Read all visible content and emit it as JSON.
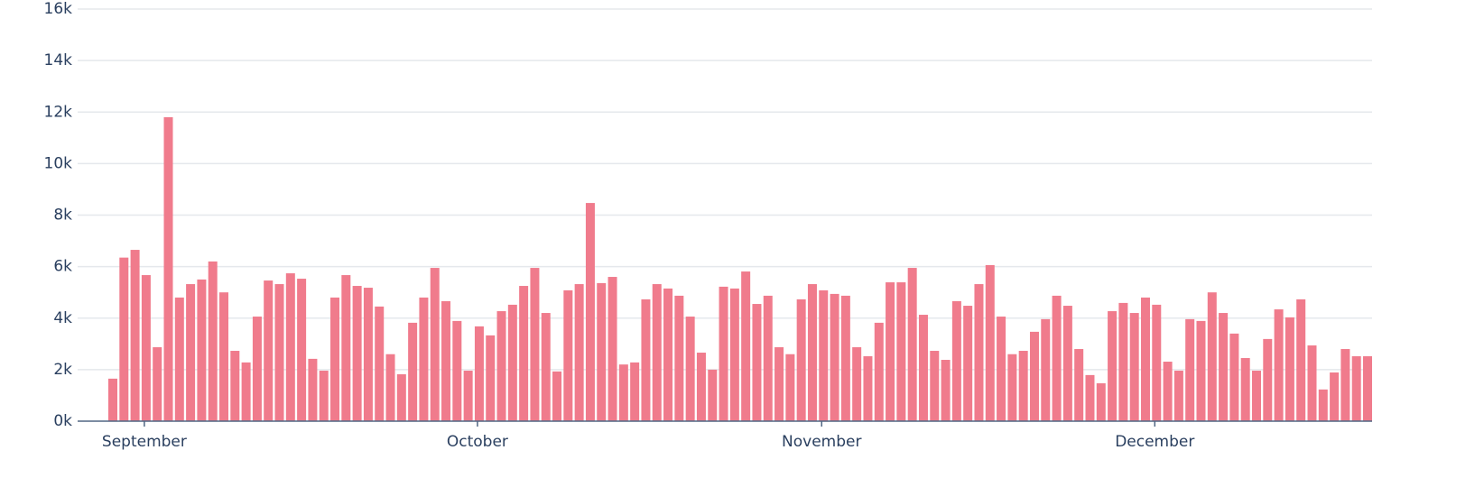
{
  "chart_data": {
    "type": "bar",
    "categories": [
      null,
      null,
      null,
      "September",
      null,
      null,
      null,
      null,
      null,
      null,
      null,
      null,
      null,
      null,
      null,
      null,
      null,
      null,
      null,
      null,
      null,
      null,
      null,
      null,
      null,
      null,
      null,
      null,
      null,
      null,
      null,
      null,
      null,
      "October",
      null,
      null,
      null,
      null,
      null,
      null,
      null,
      null,
      null,
      null,
      null,
      null,
      null,
      null,
      null,
      null,
      null,
      null,
      null,
      null,
      null,
      null,
      null,
      null,
      null,
      null,
      null,
      null,
      null,
      null,
      "November",
      null,
      null,
      null,
      null,
      null,
      null,
      null,
      null,
      null,
      null,
      null,
      null,
      null,
      null,
      null,
      null,
      null,
      null,
      null,
      null,
      null,
      null,
      null,
      null,
      null,
      null,
      null,
      null,
      null,
      "December",
      null,
      null,
      null,
      null,
      null,
      null,
      null,
      null,
      null,
      null,
      null,
      null,
      null,
      null,
      null,
      null,
      null,
      null,
      null
    ],
    "values": [
      1650,
      6350,
      6650,
      5670,
      2870,
      11800,
      4800,
      5320,
      5500,
      6200,
      5000,
      2730,
      2280,
      4060,
      5460,
      5320,
      5740,
      5530,
      2420,
      1960,
      4800,
      5670,
      5250,
      5180,
      4450,
      2600,
      1820,
      3820,
      4800,
      5950,
      4660,
      3890,
      1960,
      3680,
      3330,
      4270,
      4520,
      5250,
      5950,
      4200,
      1930,
      5080,
      5320,
      8470,
      5360,
      5600,
      2200,
      2280,
      4730,
      5320,
      5150,
      4870,
      4060,
      2660,
      2000,
      5220,
      5150,
      5810,
      4550,
      4870,
      2870,
      2600,
      4730,
      5320,
      5080,
      4940,
      4870,
      2870,
      2520,
      3820,
      5390,
      5390,
      5950,
      4130,
      2730,
      2380,
      4660,
      4480,
      5320,
      6060,
      4060,
      2600,
      2730,
      3470,
      3960,
      4870,
      4480,
      2800,
      1790,
      1470,
      4270,
      4590,
      4200,
      4800,
      4520,
      2310,
      1960,
      3960,
      3890,
      5000,
      4200,
      3400,
      2450,
      1960,
      3190,
      4340,
      4030,
      4730,
      2940,
      1230,
      1890,
      2800,
      2520,
      2520
    ],
    "color": "#f07b8c",
    "ylim": [
      0,
      16000
    ],
    "yticks": [
      {
        "value": 0,
        "label": "0k"
      },
      {
        "value": 2000,
        "label": "2k"
      },
      {
        "value": 4000,
        "label": "4k"
      },
      {
        "value": 6000,
        "label": "6k"
      },
      {
        "value": 8000,
        "label": "8k"
      },
      {
        "value": 10000,
        "label": "10k"
      },
      {
        "value": 12000,
        "label": "12k"
      },
      {
        "value": 14000,
        "label": "14k"
      },
      {
        "value": 16000,
        "label": "16k"
      }
    ],
    "grid": true
  }
}
